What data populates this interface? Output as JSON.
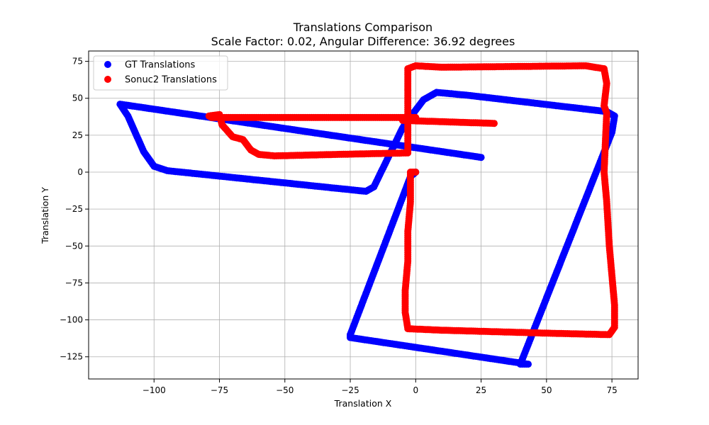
{
  "chart_data": {
    "type": "scatter",
    "title": "Translations Comparison",
    "subtitle": "Scale Factor: 0.02, Angular Difference: 36.92 degrees",
    "xlabel": "Translation X",
    "ylabel": "Translation Y",
    "xlim": [
      -125,
      85
    ],
    "ylim": [
      -140,
      82
    ],
    "xticks": [
      -100,
      -75,
      -50,
      -25,
      0,
      25,
      50,
      75
    ],
    "yticks": [
      75,
      50,
      25,
      0,
      -25,
      -50,
      -75,
      -100,
      -125
    ],
    "xtick_labels": [
      "−100",
      "−75",
      "−50",
      "−25",
      "0",
      "25",
      "50",
      "75"
    ],
    "ytick_labels": [
      "75",
      "50",
      "25",
      "0",
      "−25",
      "−50",
      "−75",
      "−100",
      "−125"
    ],
    "grid": true,
    "legend_position": "upper left",
    "series": [
      {
        "name": "GT Translations",
        "color": "#0000ff",
        "vertices": [
          [
            25,
            10
          ],
          [
            -113,
            46
          ],
          [
            -110,
            38
          ],
          [
            -107,
            26
          ],
          [
            -104,
            14
          ],
          [
            -100,
            4
          ],
          [
            -95,
            1
          ],
          [
            -19,
            -13
          ],
          [
            -16,
            -10
          ],
          [
            -5,
            30
          ],
          [
            0,
            42
          ],
          [
            3,
            49
          ],
          [
            8,
            54
          ],
          [
            20,
            52
          ],
          [
            73,
            41
          ],
          [
            76,
            38
          ],
          [
            75,
            27
          ],
          [
            40,
            -130
          ],
          [
            43,
            -130
          ],
          [
            -25,
            -112
          ],
          [
            -25,
            -110
          ],
          [
            -2,
            -3
          ],
          [
            0,
            0
          ]
        ]
      },
      {
        "name": "Sonuc2 Translations",
        "color": "#ff0000",
        "vertices": [
          [
            30,
            33
          ],
          [
            -5,
            35
          ],
          [
            0,
            37
          ],
          [
            -78,
            37
          ],
          [
            -79,
            38
          ],
          [
            -75,
            39
          ],
          [
            -74,
            32
          ],
          [
            -72,
            28
          ],
          [
            -70,
            24
          ],
          [
            -66,
            22
          ],
          [
            -63,
            15
          ],
          [
            -60,
            12
          ],
          [
            -54,
            11
          ],
          [
            -30,
            12
          ],
          [
            -3,
            13
          ],
          [
            -3,
            55
          ],
          [
            -3,
            63
          ],
          [
            -3,
            70
          ],
          [
            0,
            72
          ],
          [
            10,
            71
          ],
          [
            65,
            72
          ],
          [
            72,
            70
          ],
          [
            73,
            60
          ],
          [
            72,
            45
          ],
          [
            73,
            40
          ],
          [
            72,
            0
          ],
          [
            73,
            -20
          ],
          [
            74,
            -50
          ],
          [
            76,
            -90
          ],
          [
            76,
            -105
          ],
          [
            74,
            -110
          ],
          [
            50,
            -109
          ],
          [
            30,
            -108
          ],
          [
            10,
            -107
          ],
          [
            -3,
            -106
          ],
          [
            -4,
            -95
          ],
          [
            -4,
            -80
          ],
          [
            -3,
            -60
          ],
          [
            -3,
            -40
          ],
          [
            -2,
            -20
          ],
          [
            -2,
            0
          ],
          [
            0,
            0
          ]
        ]
      }
    ]
  }
}
